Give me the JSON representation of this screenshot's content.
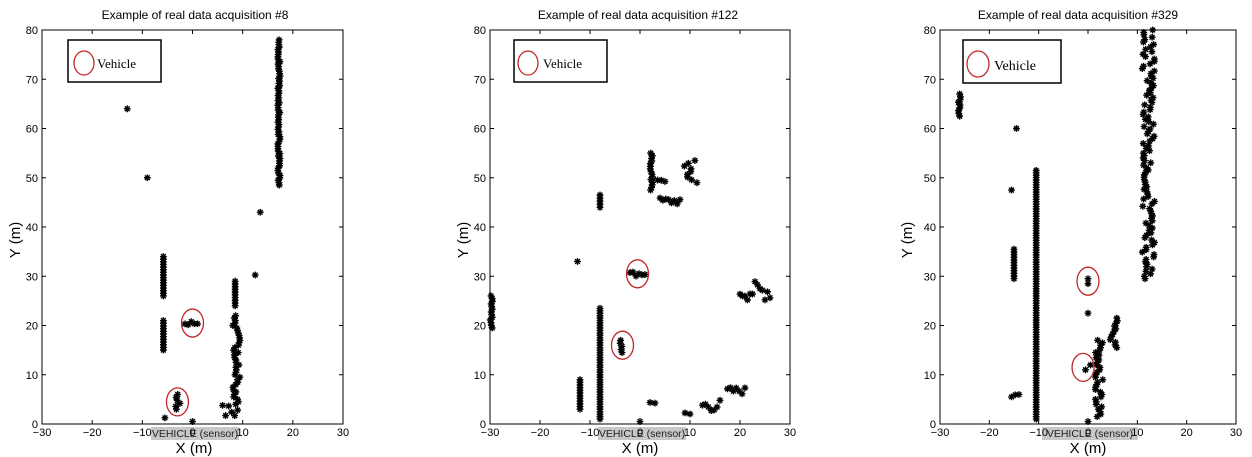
{
  "figure": {
    "panels": [
      {
        "id": "p1",
        "title": "Example of real data acquisition #8"
      },
      {
        "id": "p2",
        "title": "Example of real data acquisition #122"
      },
      {
        "id": "p3",
        "title": "Example of real data acquisition #329"
      }
    ],
    "xlabel": "X (m)",
    "ylabel": "Y (m)",
    "legend_label": "Vehicle",
    "sensor_label": "VEHICLE (sensor)",
    "xticks": [
      "−30",
      "−20",
      "−10",
      "0",
      "10",
      "20",
      "30"
    ],
    "yticks": [
      "0",
      "10",
      "20",
      "30",
      "40",
      "50",
      "60",
      "70",
      "80"
    ]
  },
  "colors": {
    "marker": "#000000",
    "vehicle_ellipse": "#c0282b",
    "sensor_box": "#c8c8c8"
  },
  "chart_data": [
    {
      "type": "scatter",
      "title": "Example of real data acquisition #8",
      "xlabel": "X (m)",
      "ylabel": "Y (m)",
      "xlim": [
        -30,
        30
      ],
      "ylim": [
        0,
        80
      ],
      "grid": false,
      "legend": {
        "label": "Vehicle",
        "position": "top-left"
      },
      "marker": "asterisk",
      "clusters": [
        {
          "x": [
            -13.0
          ],
          "y": [
            64.0
          ]
        },
        {
          "x": [
            -9.0
          ],
          "y": [
            50.0
          ]
        },
        {
          "x": [
            -5.8,
            -5.8
          ],
          "y": [
            26.0,
            34.0
          ]
        },
        {
          "x": [
            -5.8,
            -5.8
          ],
          "y": [
            15.0,
            21.0
          ]
        },
        {
          "x": [
            -5.5,
            -5.5
          ],
          "y": [
            1.0,
            1.5
          ]
        },
        {
          "x": [
            -3.5,
            -2.5
          ],
          "y": [
            3.0,
            6.0
          ]
        },
        {
          "x": [
            -1.5,
            1.0
          ],
          "y": [
            20.0,
            21.0
          ]
        },
        {
          "x": [
            0.0,
            0.0
          ],
          "y": [
            0.5,
            0.5
          ]
        },
        {
          "x": [
            6.0,
            9.0
          ],
          "y": [
            1.0,
            4.0
          ]
        },
        {
          "x": [
            8.0,
            9.5
          ],
          "y": [
            4.0,
            22.0
          ]
        },
        {
          "x": [
            8.5,
            8.5
          ],
          "y": [
            24.0,
            29.0
          ]
        },
        {
          "x": [
            12.5,
            12.5
          ],
          "y": [
            30.0,
            30.5
          ]
        },
        {
          "x": [
            13.5,
            13.5
          ],
          "y": [
            43.0,
            43.0
          ]
        },
        {
          "x": [
            17.0,
            17.5
          ],
          "y": [
            48.5,
            78.0
          ]
        }
      ],
      "vehicles": [
        {
          "x": 0.0,
          "y": 20.5
        },
        {
          "x": -3.0,
          "y": 4.5
        }
      ]
    },
    {
      "type": "scatter",
      "title": "Example of real data acquisition #122",
      "xlabel": "X (m)",
      "ylabel": "Y (m)",
      "xlim": [
        -30,
        30
      ],
      "ylim": [
        0,
        80
      ],
      "grid": false,
      "legend": {
        "label": "Vehicle",
        "position": "top-left"
      },
      "marker": "asterisk",
      "clusters": [
        {
          "x": [
            -30.0,
            -29.5
          ],
          "y": [
            19.5,
            26.0
          ]
        },
        {
          "x": [
            -12.5
          ],
          "y": [
            33.0
          ]
        },
        {
          "x": [
            -12.0,
            -12.0
          ],
          "y": [
            3.0,
            9.0
          ]
        },
        {
          "x": [
            -8.0,
            -8.0
          ],
          "y": [
            44.0,
            46.5
          ]
        },
        {
          "x": [
            -8.0,
            -8.0
          ],
          "y": [
            1.0,
            23.5
          ]
        },
        {
          "x": [
            -4.0,
            -3.0
          ],
          "y": [
            14.5,
            17.0
          ]
        },
        {
          "x": [
            -2.0,
            1.0
          ],
          "y": [
            30.0,
            31.0
          ]
        },
        {
          "x": [
            0.0,
            0.0
          ],
          "y": [
            0.5,
            0.5
          ]
        },
        {
          "x": [
            2.0,
            3.0
          ],
          "y": [
            4.0,
            4.5
          ]
        },
        {
          "x": [
            2.0,
            2.5
          ],
          "y": [
            47.5,
            55.0
          ]
        },
        {
          "x": [
            3.5,
            5.0
          ],
          "y": [
            49.0,
            50.5
          ]
        },
        {
          "x": [
            4.0,
            8.0
          ],
          "y": [
            44.5,
            46.0
          ]
        },
        {
          "x": [
            8.5,
            11.5
          ],
          "y": [
            49.0,
            53.5
          ]
        },
        {
          "x": [
            9.0,
            10.0
          ],
          "y": [
            1.5,
            2.5
          ]
        },
        {
          "x": [
            12.5,
            16.0
          ],
          "y": [
            2.5,
            5.0
          ]
        },
        {
          "x": [
            17.5,
            21.0
          ],
          "y": [
            6.0,
            7.5
          ]
        },
        {
          "x": [
            20.0,
            26.0
          ],
          "y": [
            25.0,
            29.0
          ]
        }
      ],
      "vehicles": [
        {
          "x": -3.5,
          "y": 16.0
        },
        {
          "x": -0.5,
          "y": 30.5
        }
      ]
    },
    {
      "type": "scatter",
      "title": "Example of real data acquisition #329",
      "xlabel": "X (m)",
      "ylabel": "Y (m)",
      "xlim": [
        -30,
        30
      ],
      "ylim": [
        0,
        80
      ],
      "grid": false,
      "legend": {
        "label": "Vehicle",
        "position": "top-left"
      },
      "marker": "asterisk",
      "clusters": [
        {
          "x": [
            -26.5,
            -25.5
          ],
          "y": [
            62.5,
            67.0
          ]
        },
        {
          "x": [
            -15.0,
            -15.0
          ],
          "y": [
            29.5,
            35.5
          ]
        },
        {
          "x": [
            -15.5,
            -15.5
          ],
          "y": [
            47.5,
            47.5
          ]
        },
        {
          "x": [
            -14.5,
            -14.5
          ],
          "y": [
            60.0,
            60.0
          ]
        },
        {
          "x": [
            -15.5,
            -14.0
          ],
          "y": [
            5.5,
            6.0
          ]
        },
        {
          "x": [
            -10.5,
            -10.5
          ],
          "y": [
            1.0,
            51.5
          ]
        },
        {
          "x": [
            -0.5,
            0.5
          ],
          "y": [
            11.0,
            12.0
          ]
        },
        {
          "x": [
            0.0,
            0.0
          ],
          "y": [
            28.5,
            29.5
          ]
        },
        {
          "x": [
            0.0,
            0.0
          ],
          "y": [
            0.5,
            0.5
          ]
        },
        {
          "x": [
            0.0,
            0.0
          ],
          "y": [
            22.5,
            22.5
          ]
        },
        {
          "x": [
            1.5,
            3.0
          ],
          "y": [
            1.5,
            17.0
          ]
        },
        {
          "x": [
            4.5,
            6.0
          ],
          "y": [
            15.5,
            21.5
          ]
        },
        {
          "x": [
            11.0,
            13.5
          ],
          "y": [
            29.5,
            80.0
          ]
        }
      ],
      "vehicles": [
        {
          "x": 0.0,
          "y": 29.0
        },
        {
          "x": -1.0,
          "y": 11.5
        }
      ]
    }
  ]
}
